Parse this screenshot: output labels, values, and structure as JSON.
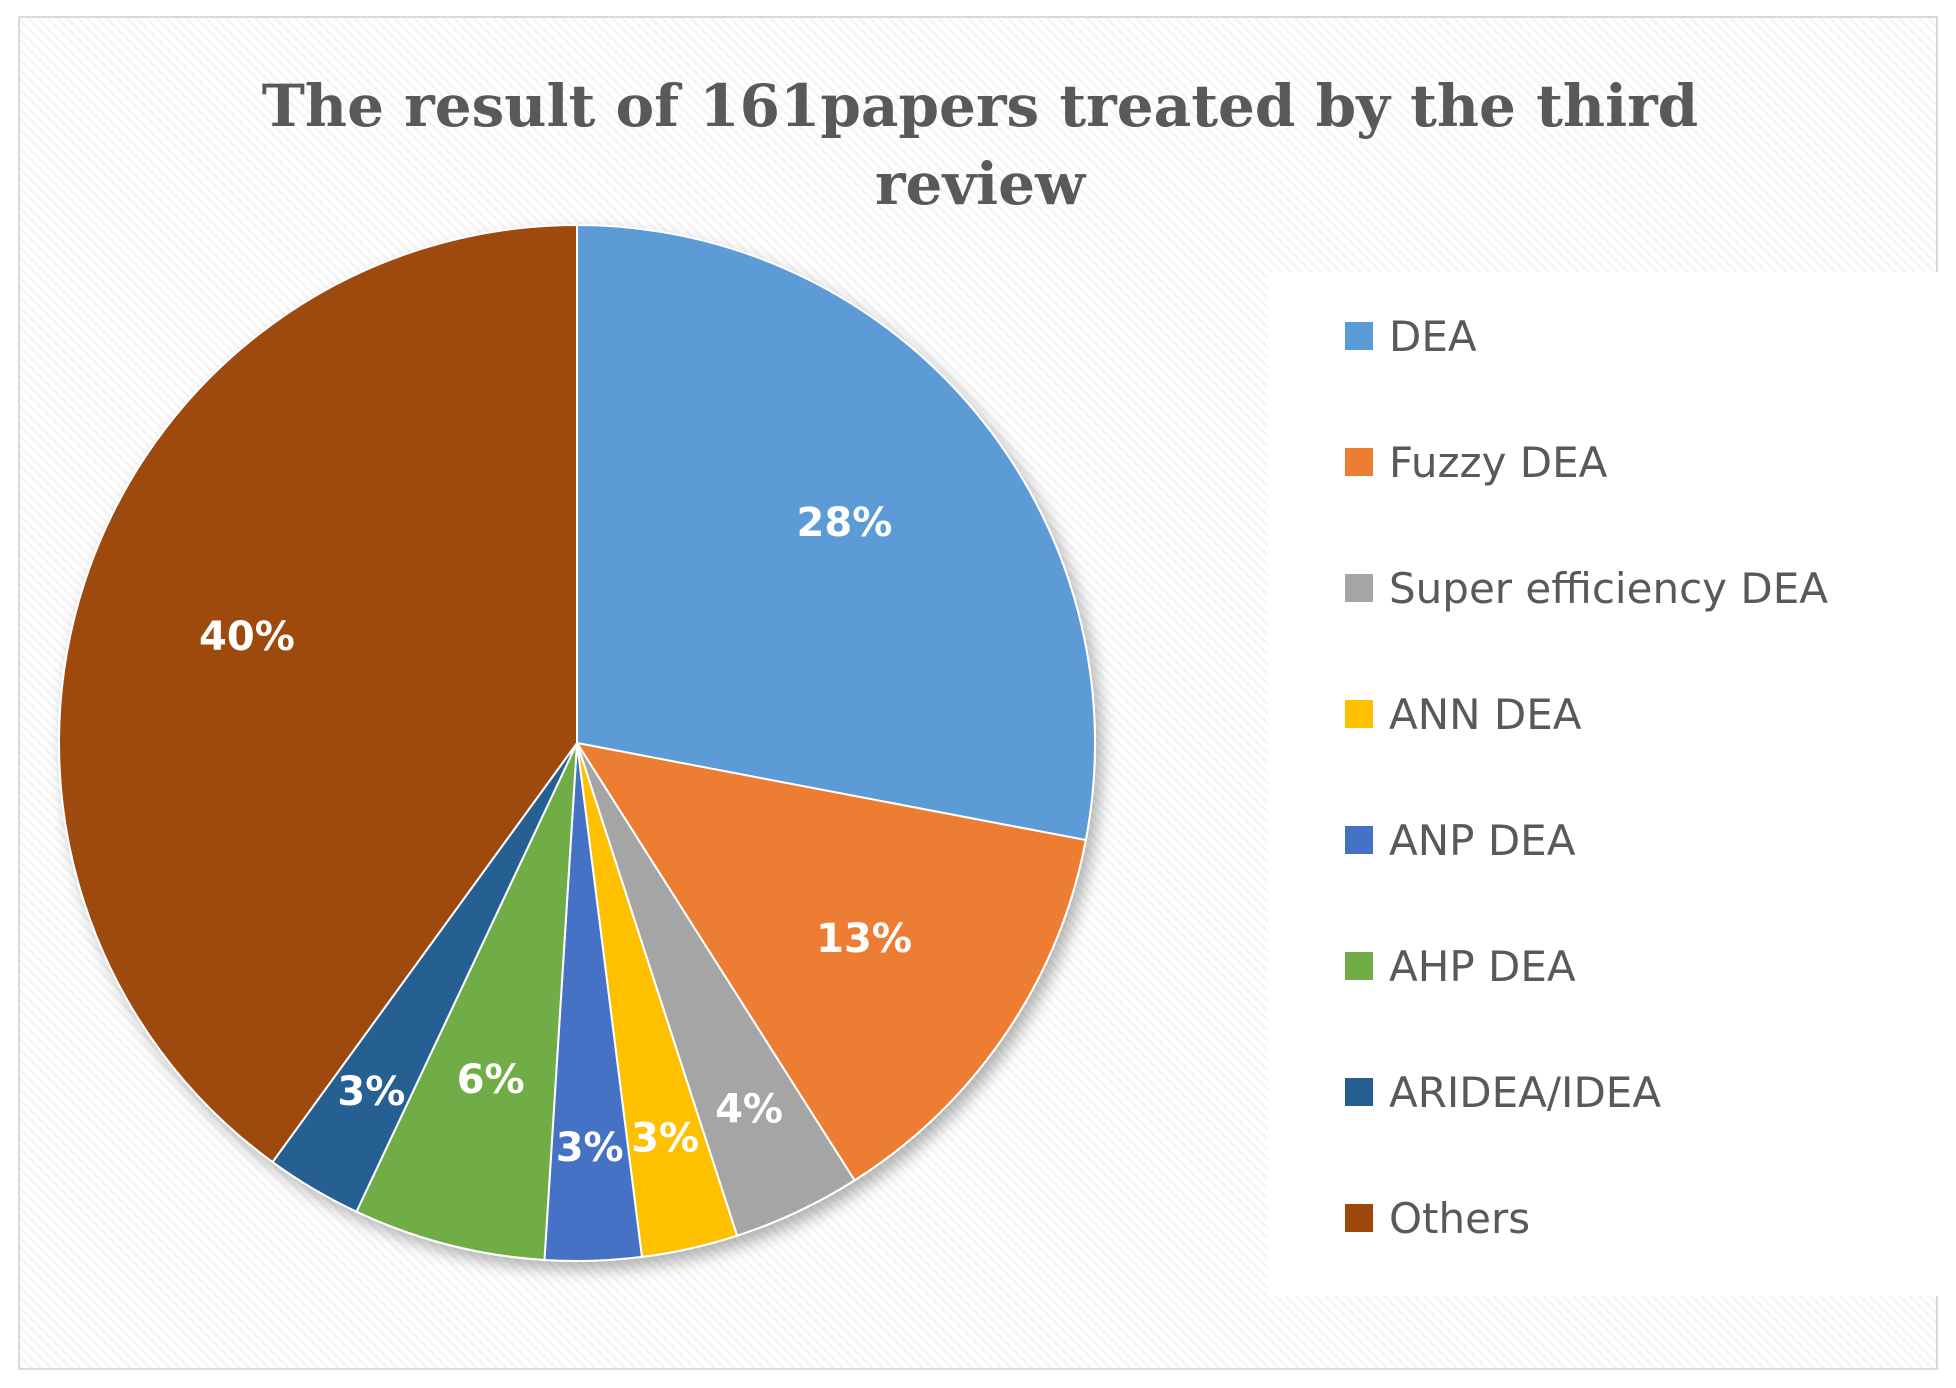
{
  "chart_data": {
    "type": "pie",
    "title_lines": [
      "The result of 161papers treated by the third",
      "review"
    ],
    "legend_position": "right",
    "slices": [
      {
        "label": "DEA",
        "value": 28,
        "display": "28%",
        "color": "#5B9BD5"
      },
      {
        "label": "Fuzzy DEA",
        "value": 13,
        "display": "13%",
        "color": "#ED7D31"
      },
      {
        "label": "Super efficiency DEA",
        "value": 4,
        "display": "4%",
        "color": "#A5A5A5"
      },
      {
        "label": "ANN DEA",
        "value": 3,
        "display": "3%",
        "color": "#FFC000"
      },
      {
        "label": "ANP DEA",
        "value": 3,
        "display": "3%",
        "color": "#4472C4"
      },
      {
        "label": "AHP DEA",
        "value": 6,
        "display": "6%",
        "color": "#70AD47"
      },
      {
        "label": "ARIDEA/IDEA",
        "value": 3,
        "display": "3%",
        "color": "#255E91"
      },
      {
        "label": "Others",
        "value": 40,
        "display": "40%",
        "color": "#9E480E"
      }
    ]
  }
}
